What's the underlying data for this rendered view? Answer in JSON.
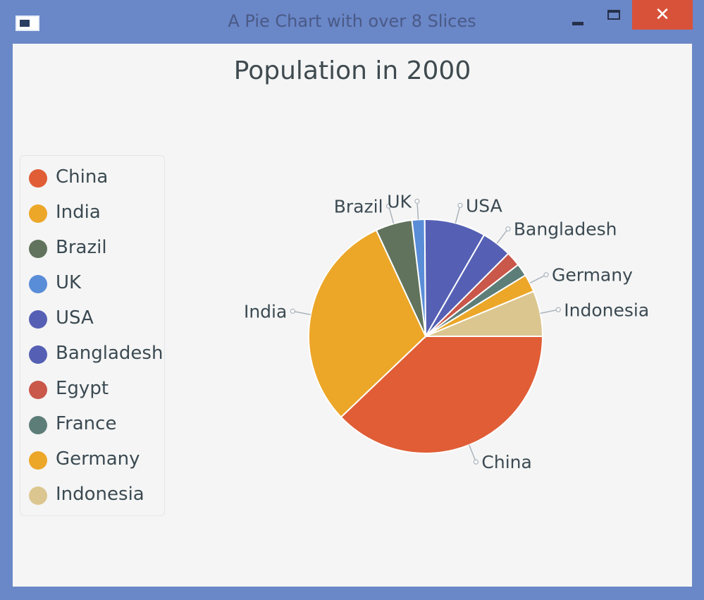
{
  "window": {
    "title": "A Pie Chart with over 8 Slices",
    "close_glyph": "✕"
  },
  "chart_data": {
    "type": "pie",
    "title": "Population in 2000",
    "legend_position": "left",
    "slices": [
      {
        "label": "China",
        "value": 1275,
        "color": "#e05d36"
      },
      {
        "label": "India",
        "value": 1017,
        "color": "#eca628"
      },
      {
        "label": "Brazil",
        "value": 170,
        "color": "#61735c"
      },
      {
        "label": "UK",
        "value": 59,
        "color": "#5a8dd8"
      },
      {
        "label": "USA",
        "value": 285,
        "color": "#5560b4"
      },
      {
        "label": "Bangladesh",
        "value": 140,
        "color": "#5560b4"
      },
      {
        "label": "Egypt",
        "value": 68,
        "color": "#c9574a"
      },
      {
        "label": "France",
        "value": 59,
        "color": "#5d7d78"
      },
      {
        "label": "Germany",
        "value": 82,
        "color": "#eca628"
      },
      {
        "label": "Indonesia",
        "value": 212,
        "color": "#dcc690"
      }
    ],
    "pie_labels": [
      "USA",
      "Bangladesh",
      "Germany",
      "Indonesia",
      "China",
      "India",
      "Brazil",
      "UK"
    ]
  }
}
